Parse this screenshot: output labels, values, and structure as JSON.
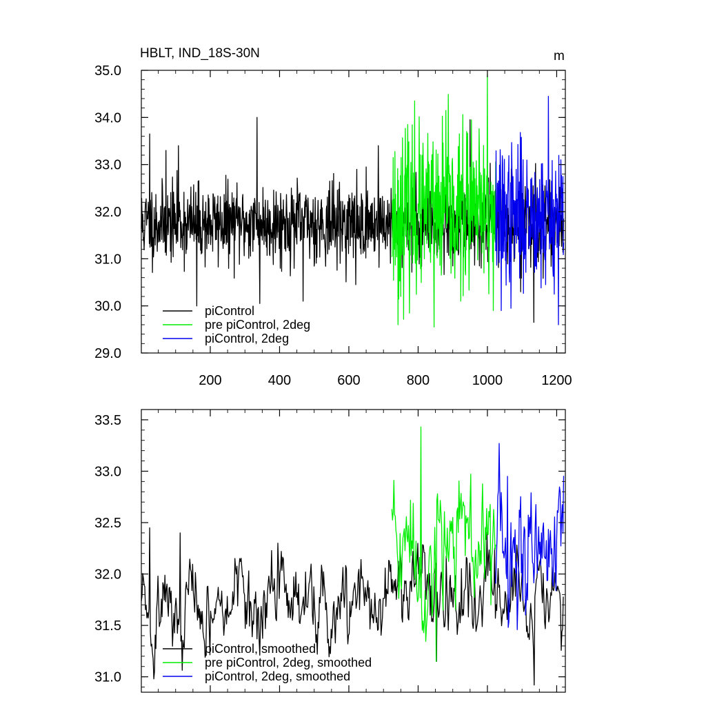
{
  "chart_data": [
    {
      "type": "line",
      "title_left": "HBLT, IND_18S-30N",
      "title_right": "m",
      "xlim": [
        1,
        1225
      ],
      "ylim": [
        29.0,
        35.0
      ],
      "x_ticks": [
        200,
        400,
        600,
        800,
        1000,
        1200
      ],
      "x_tick_labels": [
        "200",
        "400",
        "600",
        "800",
        "1000",
        "1200"
      ],
      "y_ticks": [
        29.0,
        30.0,
        31.0,
        32.0,
        33.0,
        34.0,
        35.0
      ],
      "y_tick_labels": [
        "29.0",
        "30.0",
        "31.0",
        "32.0",
        "33.0",
        "34.0",
        "35.0"
      ],
      "legend_position": "bottom-left",
      "series": [
        {
          "name": "piControl",
          "color": "#000000",
          "x_start": 1,
          "x_end": 1220,
          "seed": 11,
          "mean": 31.75,
          "amp": 0.55,
          "spikes": [
            [
              25,
              33.65
            ],
            [
              72,
              33.3
            ],
            [
              108,
              33.4
            ],
            [
              161,
              30.0
            ],
            [
              335,
              34.0
            ],
            [
              343,
              30.05
            ],
            [
              468,
              30.1
            ],
            [
              620,
              30.45
            ],
            [
              685,
              33.4
            ],
            [
              950,
              33.95
            ],
            [
              1096,
              30.3
            ],
            [
              1134,
              29.65
            ]
          ]
        },
        {
          "name": "pre piControl, 2deg",
          "color": "#00ee00",
          "x_start": 724,
          "x_end": 1024,
          "seed": 23,
          "mean": 31.95,
          "amp": 1.1,
          "spikes": [
            [
              742,
              29.6
            ],
            [
              790,
              34.35
            ],
            [
              846,
              29.55
            ],
            [
              880,
              34.15
            ],
            [
              940,
              33.7
            ],
            [
              1000,
              34.9
            ],
            [
              1017,
              29.9
            ]
          ]
        },
        {
          "name": "piControl, 2deg",
          "color": "#0000ee",
          "x_start": 1024,
          "x_end": 1220,
          "seed": 37,
          "mean": 31.95,
          "amp": 0.95,
          "spikes": [
            [
              1040,
              29.9
            ],
            [
              1068,
              29.95
            ],
            [
              1168,
              30.45
            ],
            [
              1176,
              34.45
            ],
            [
              1205,
              29.6
            ],
            [
              1212,
              33.1
            ]
          ]
        }
      ]
    },
    {
      "type": "line",
      "xlim": [
        1,
        1225
      ],
      "ylim": [
        30.85,
        33.6
      ],
      "x_ticks": [
        200,
        400,
        600,
        800,
        1000,
        1200
      ],
      "y_ticks": [
        31.0,
        31.5,
        32.0,
        32.5,
        33.0,
        33.5
      ],
      "y_tick_labels": [
        "31.0",
        "31.5",
        "32.0",
        "32.5",
        "33.0",
        "33.5"
      ],
      "legend_position": "bottom-left",
      "series": [
        {
          "name": "piControl, smoothed",
          "color": "#000000",
          "x_start": 1,
          "x_end": 1220,
          "seed": 5,
          "mean": 31.76,
          "amp": 0.22,
          "spikes": [
            [
              25,
              32.45
            ],
            [
              50,
              31.45
            ],
            [
              113,
              32.4
            ],
            [
              160,
              31.2
            ],
            [
              250,
              32.2
            ],
            [
              310,
              32.28
            ],
            [
              395,
              32.3
            ],
            [
              760,
              32.2
            ],
            [
              853,
              31.15
            ],
            [
              1135,
              30.92
            ],
            [
              1190,
              31.2
            ]
          ]
        },
        {
          "name": "pre piControl, 2deg, smoothed",
          "color": "#00ee00",
          "x_start": 724,
          "x_end": 1024,
          "seed": 41,
          "mean": 32.3,
          "amp": 0.35,
          "spikes": [
            [
              728,
              32.6
            ],
            [
              808,
              33.43
            ],
            [
              852,
              31.15
            ],
            [
              900,
              32.55
            ],
            [
              985,
              33.15
            ],
            [
              1010,
              31.7
            ]
          ]
        },
        {
          "name": "piControl, 2deg, smoothed",
          "color": "#0000ee",
          "x_start": 1024,
          "x_end": 1220,
          "seed": 59,
          "mean": 32.15,
          "amp": 0.38,
          "spikes": [
            [
              1058,
              32.95
            ],
            [
              1095,
              32.85
            ],
            [
              1135,
              31.1
            ],
            [
              1175,
              33.1
            ],
            [
              1193,
              31.25
            ],
            [
              1215,
              31.4
            ]
          ]
        }
      ]
    }
  ]
}
